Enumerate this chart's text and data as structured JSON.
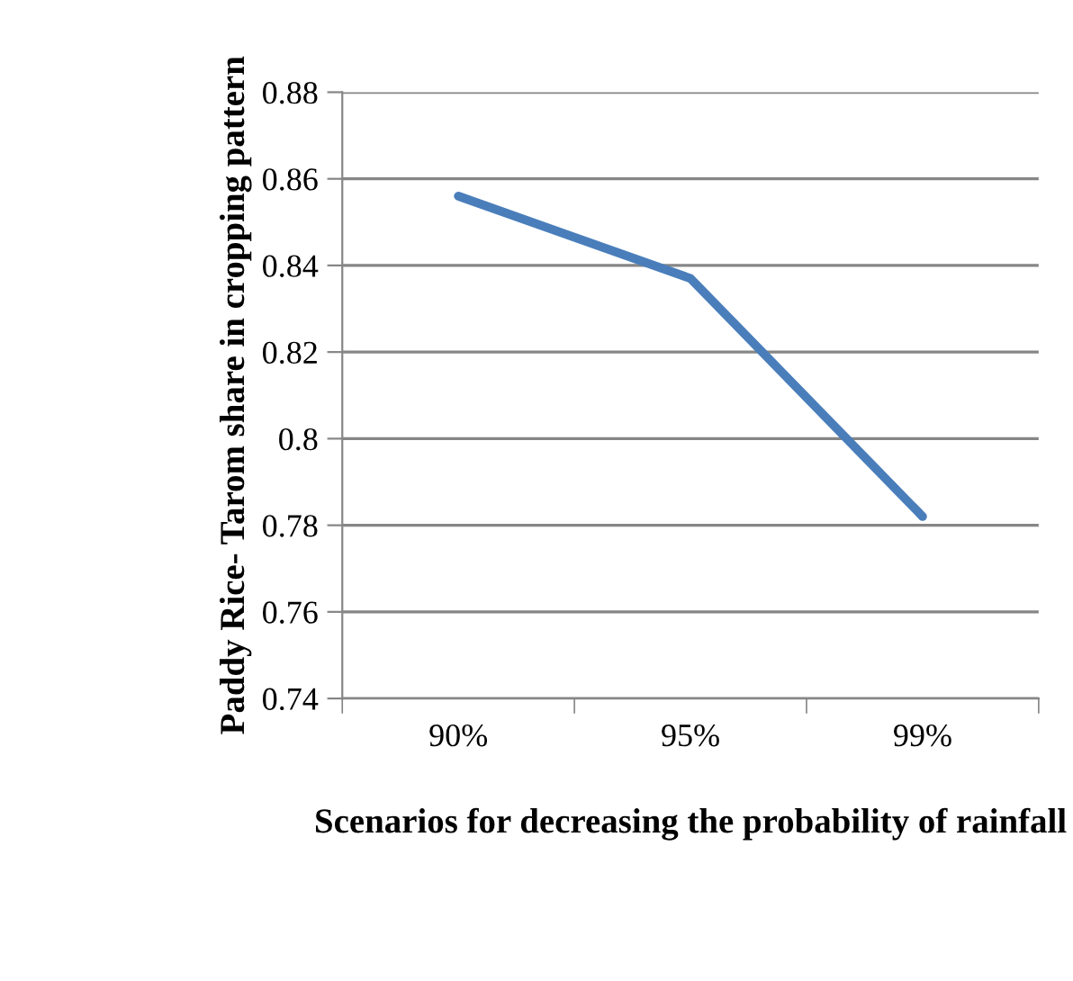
{
  "chart_data": {
    "type": "line",
    "xlabel": "Scenarios for decreasing the probability of rainfall",
    "ylabel": "Paddy Rice- Tarom share in cropping pattern",
    "categories": [
      "90%",
      "95%",
      "99%"
    ],
    "series": [
      {
        "color": "#4a7ebb",
        "values": [
          0.856,
          0.837,
          0.782
        ]
      }
    ],
    "ylim": [
      0.74,
      0.88
    ],
    "yticks": [
      0.74,
      0.76,
      0.78,
      0.8,
      0.82,
      0.84,
      0.86,
      0.88
    ],
    "grid": "y",
    "legend": false,
    "marker": "none",
    "line_style": "solid"
  }
}
